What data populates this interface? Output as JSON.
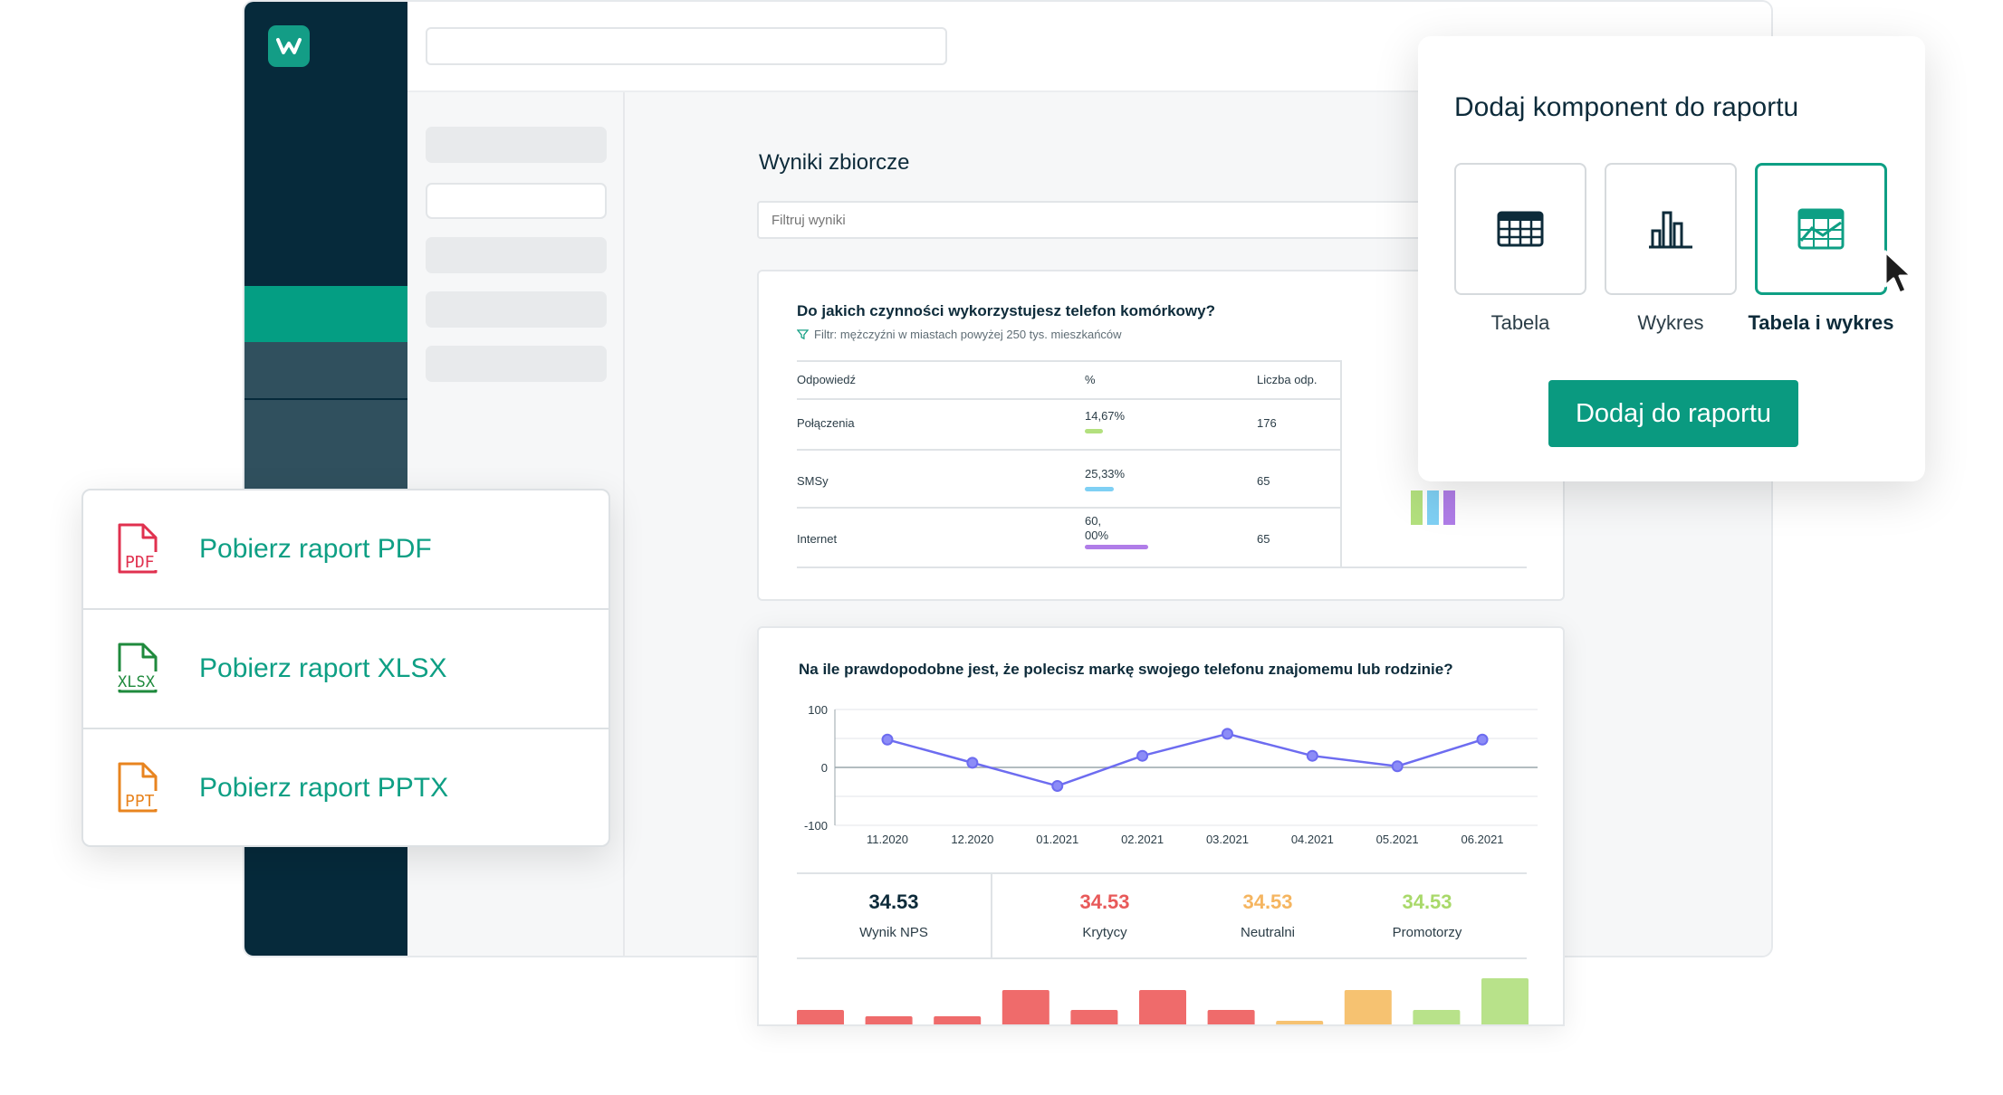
{
  "colors": {
    "sidebar": "#062a3b",
    "accent": "#049e83",
    "nav_inactive": "#30505e",
    "brand_text": "#0e9f84",
    "red": "#e85a5a",
    "orange": "#f5b560",
    "green": "#a9d96a",
    "violet": "#6d6cf0",
    "bar_green": "#b3e07e",
    "bar_blue": "#7fd0f4",
    "bar_purple": "#b07de8"
  },
  "app": {
    "logo_icon": "w-logo-icon"
  },
  "results": {
    "title": "Wyniki zbiorcze",
    "filter_placeholder": "Filtruj wyniki"
  },
  "card1": {
    "question": "Do jakich czynności wykorzystujesz telefon komórkowy?",
    "filter_note": "Filtr: mężczyźni w miastach powyżej 250 tys. mieszkańców",
    "columns": [
      "Odpowiedź",
      "%",
      "Liczba odp."
    ],
    "rows": [
      {
        "answer": "Połączenia",
        "pct": "14,67%",
        "pct_value": 14.67,
        "count": "176",
        "color": "#b3e07e"
      },
      {
        "answer": "SMSy",
        "pct": "25,33%",
        "pct_value": 25.33,
        "count": "65",
        "color": "#7fd0f4"
      },
      {
        "answer": "Internet",
        "pct_line1": "60,",
        "pct_line2": "00%",
        "pct_value": 60.0,
        "count": "65",
        "color": "#b07de8"
      }
    ]
  },
  "card2": {
    "question": "Na ile prawdopodobne jest, że polecisz markę swojego telefonu znajomemu lub rodzinie?",
    "kpis": [
      {
        "value": "34.53",
        "label": "Wynik NPS",
        "color": "#0d2b3a"
      },
      {
        "value": "34.53",
        "label": "Krytycy",
        "color": "#e85a5a"
      },
      {
        "value": "34.53",
        "label": "Neutralni",
        "color": "#f5b560"
      },
      {
        "value": "34.53",
        "label": "Promotorzy",
        "color": "#a9d96a"
      }
    ]
  },
  "chart_data": {
    "type": "line",
    "x": [
      "11.2020",
      "12.2020",
      "01.2021",
      "02.2021",
      "03.2021",
      "04.2021",
      "05.2021",
      "06.2021"
    ],
    "series": [
      {
        "values": [
          48,
          8,
          -32,
          20,
          58,
          20,
          2,
          48
        ]
      }
    ],
    "ylim": [
      -100,
      100
    ],
    "yticks": [
      "100",
      "0",
      "-100"
    ],
    "grid": true
  },
  "bars_preview": {
    "values": [
      20,
      13,
      13,
      42,
      20,
      42,
      20,
      8,
      42,
      20,
      55
    ],
    "colors": [
      "#ef6b6b",
      "#ef6b6b",
      "#ef6b6b",
      "#ef6b6b",
      "#ef6b6b",
      "#ef6b6b",
      "#ef6b6b",
      "#f6c271",
      "#f6c271",
      "#b8e28a",
      "#b8e28a"
    ]
  },
  "downloads": [
    {
      "label": "Pobierz raport PDF",
      "icon": "pdf-file-icon",
      "badge": "PDF",
      "color": "#e0314f"
    },
    {
      "label": "Pobierz raport XLSX",
      "icon": "xlsx-file-icon",
      "badge": "XLSX",
      "color": "#1f8a3d"
    },
    {
      "label": "Pobierz raport PPTX",
      "icon": "pptx-file-icon",
      "badge": "PPT",
      "color": "#e8841f"
    }
  ],
  "add_panel": {
    "title": "Dodaj komponent do raportu",
    "options": [
      {
        "label": "Tabela",
        "icon": "table-icon",
        "selected": false
      },
      {
        "label": "Wykres",
        "icon": "bar-chart-icon",
        "selected": false
      },
      {
        "label": "Tabela i wykres",
        "icon": "table-chart-icon",
        "selected": true
      }
    ],
    "button": "Dodaj do raportu"
  }
}
